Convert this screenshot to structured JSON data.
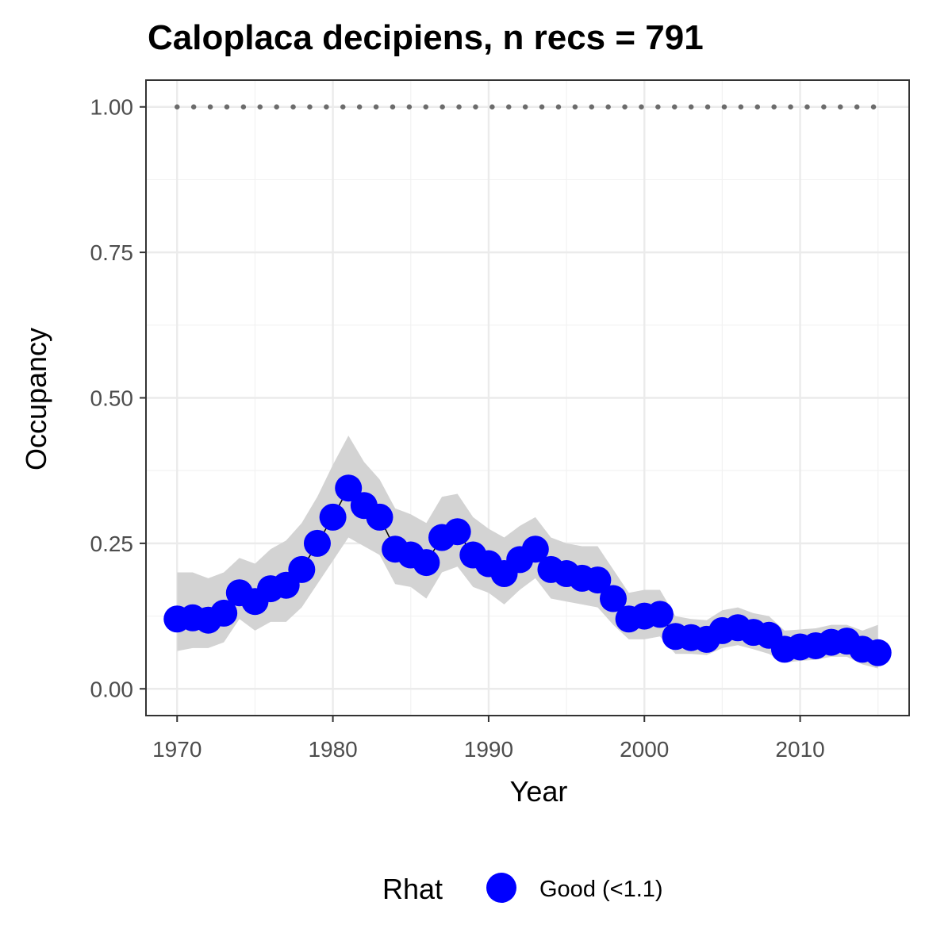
{
  "chart_data": {
    "type": "line",
    "title": "Caloplaca decipiens, n recs = 791",
    "xlabel": "Year",
    "ylabel": "Occupancy",
    "xlim": [
      1968,
      2017
    ],
    "ylim": [
      -0.046,
      1.046
    ],
    "x_ticks": [
      1970,
      1980,
      1990,
      2000,
      2010
    ],
    "x_tick_labels": [
      "1970",
      "1980",
      "1990",
      "2000",
      "2010"
    ],
    "y_ticks": [
      0,
      0.25,
      0.5,
      0.75,
      1.0
    ],
    "y_tick_labels": [
      "0.00",
      "0.25",
      "0.50",
      "0.75",
      "1.00"
    ],
    "grid": true,
    "legend_position": "bottom",
    "legend": {
      "title": "Rhat",
      "entries": [
        {
          "label": "Good (<1.1)",
          "color": "#0000ff"
        }
      ]
    },
    "reference_line": {
      "y": 1.0,
      "style": "dotted",
      "color": "#6b6b6b"
    },
    "series": [
      {
        "name": "Occupancy (Rhat Good (<1.1))",
        "color": "#0000ff",
        "ribbon_color": "#d3d3d3",
        "x": [
          1970,
          1971,
          1972,
          1973,
          1974,
          1975,
          1976,
          1977,
          1978,
          1979,
          1980,
          1981,
          1982,
          1983,
          1984,
          1985,
          1986,
          1987,
          1988,
          1989,
          1990,
          1991,
          1992,
          1993,
          1994,
          1995,
          1996,
          1997,
          1998,
          1999,
          2000,
          2001,
          2002,
          2003,
          2004,
          2005,
          2006,
          2007,
          2008,
          2009,
          2010,
          2011,
          2012,
          2013,
          2014,
          2015
        ],
        "values": [
          0.12,
          0.122,
          0.118,
          0.13,
          0.165,
          0.15,
          0.172,
          0.178,
          0.205,
          0.25,
          0.295,
          0.345,
          0.315,
          0.295,
          0.24,
          0.23,
          0.217,
          0.26,
          0.27,
          0.23,
          0.215,
          0.198,
          0.222,
          0.24,
          0.205,
          0.198,
          0.19,
          0.187,
          0.155,
          0.12,
          0.125,
          0.128,
          0.09,
          0.088,
          0.085,
          0.1,
          0.105,
          0.097,
          0.092,
          0.068,
          0.072,
          0.074,
          0.08,
          0.082,
          0.068,
          0.062
        ],
        "lower": [
          0.065,
          0.07,
          0.07,
          0.08,
          0.12,
          0.1,
          0.115,
          0.115,
          0.14,
          0.18,
          0.22,
          0.26,
          0.245,
          0.23,
          0.18,
          0.175,
          0.155,
          0.2,
          0.21,
          0.175,
          0.165,
          0.145,
          0.17,
          0.19,
          0.155,
          0.15,
          0.145,
          0.14,
          0.11,
          0.085,
          0.085,
          0.09,
          0.06,
          0.06,
          0.058,
          0.07,
          0.075,
          0.068,
          0.06,
          0.045,
          0.048,
          0.05,
          0.055,
          0.055,
          0.042,
          0.035
        ],
        "upper": [
          0.2,
          0.2,
          0.19,
          0.2,
          0.225,
          0.215,
          0.24,
          0.255,
          0.285,
          0.33,
          0.385,
          0.435,
          0.39,
          0.36,
          0.31,
          0.3,
          0.285,
          0.33,
          0.335,
          0.295,
          0.275,
          0.26,
          0.28,
          0.295,
          0.26,
          0.25,
          0.245,
          0.245,
          0.205,
          0.165,
          0.17,
          0.17,
          0.125,
          0.12,
          0.118,
          0.135,
          0.14,
          0.13,
          0.125,
          0.1,
          0.102,
          0.104,
          0.11,
          0.11,
          0.1,
          0.11
        ]
      }
    ]
  }
}
